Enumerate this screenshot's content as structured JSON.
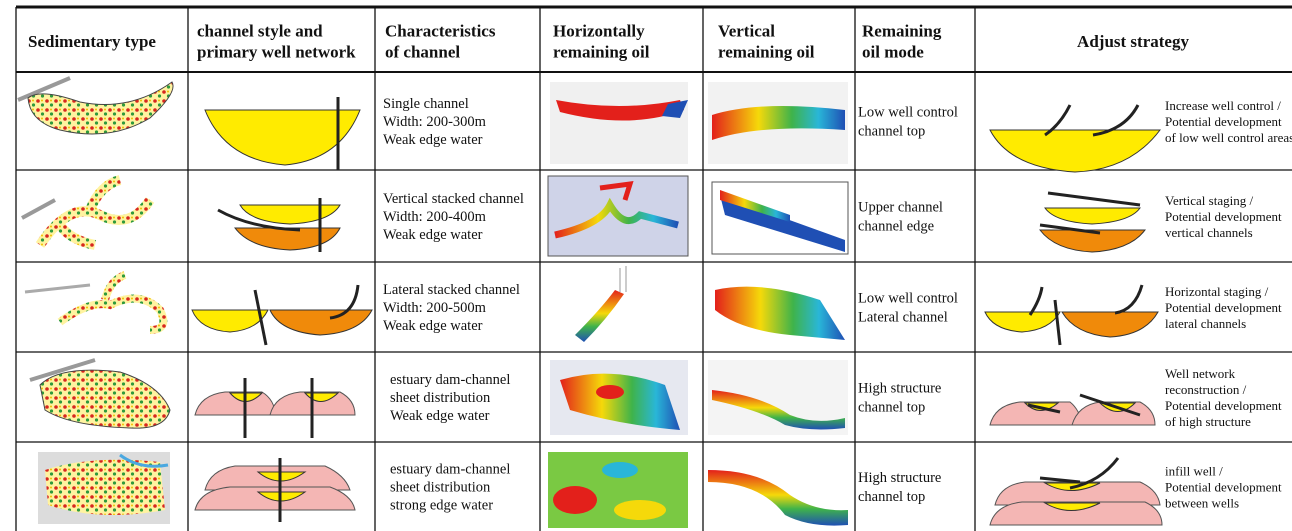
{
  "table": {
    "header": [
      [
        "Sedimentary type"
      ],
      [
        "channel style and",
        "primary well network"
      ],
      [
        "Characteristics",
        "of channel"
      ],
      [
        "Horizontally",
        "remaining oil"
      ],
      [
        "Vertical",
        "remaining oil"
      ],
      [
        "Remaining",
        "oil mode"
      ],
      [
        "Adjust strategy"
      ]
    ],
    "rows": [
      {
        "characteristics": [
          "Single channel",
          "Width: 200-300m",
          "Weak edge water"
        ],
        "mode": [
          "Low well control",
          "channel top"
        ],
        "strategy": [
          "Increase well control /",
          "Potential development",
          "of low well control areas"
        ]
      },
      {
        "characteristics": [
          "Vertical stacked channel",
          "Width: 200-400m",
          "Weak edge water"
        ],
        "mode": [
          "Upper channel",
          "channel edge"
        ],
        "strategy": [
          "Vertical staging /",
          "Potential development",
          "vertical channels"
        ]
      },
      {
        "characteristics": [
          "Lateral stacked channel",
          "Width: 200-500m",
          "Weak edge water"
        ],
        "mode": [
          "Low well control",
          "Lateral channel"
        ],
        "strategy": [
          "Horizontal staging /",
          "Potential development",
          "lateral channels"
        ]
      },
      {
        "characteristics": [
          "estuary dam-channel",
          "sheet distribution",
          "Weak edge water"
        ],
        "mode": [
          "High structure",
          "channel top"
        ],
        "strategy": [
          "Well network",
          "reconstruction /",
          "Potential development",
          "of high structure"
        ]
      },
      {
        "characteristics": [
          "estuary dam-channel",
          "sheet distribution",
          "strong edge water"
        ],
        "mode": [
          "High structure",
          "channel top"
        ],
        "strategy": [
          "infill well /",
          "Potential development",
          "between wells"
        ]
      }
    ]
  }
}
